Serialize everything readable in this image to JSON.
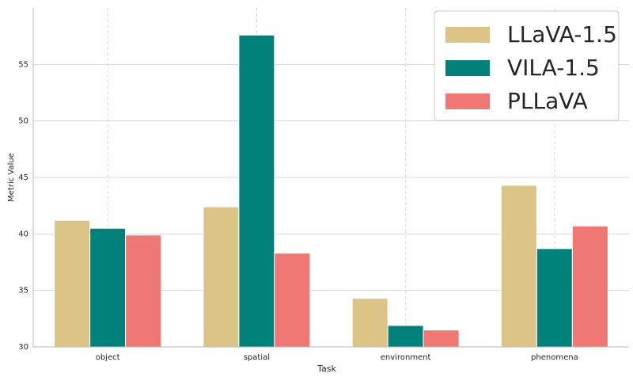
{
  "chart_data": {
    "type": "bar",
    "x_label": "Task",
    "y_label": "Metric Value",
    "categories": [
      "object",
      "spatial",
      "environment",
      "phenomena"
    ],
    "series": [
      {
        "name": "LLaVA-1.5",
        "color": "#dbc486",
        "values": [
          41.2,
          42.4,
          34.3,
          44.3
        ]
      },
      {
        "name": "VILA-1.5",
        "color": "#00827a",
        "values": [
          40.5,
          57.6,
          31.9,
          38.7
        ]
      },
      {
        "name": "PLLaVA",
        "color": "#ef7875",
        "values": [
          39.9,
          38.3,
          31.5,
          40.7
        ]
      }
    ],
    "ylim": [
      30,
      60
    ],
    "yticks": [
      30,
      35,
      40,
      45,
      50,
      55
    ],
    "grid": true,
    "legend": "upper right"
  }
}
